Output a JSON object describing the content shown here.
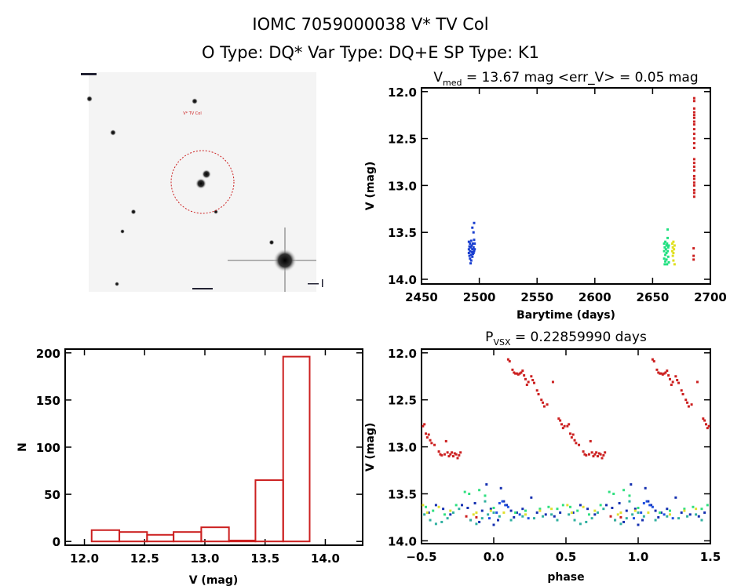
{
  "header": {
    "title": "IOMC 7059000038    V* TV Col",
    "subtitle": "O Type: DQ*  Var Type: DQ+E  SP Type: K1"
  },
  "cutout": {
    "target_label": "V* TV Col",
    "marker_color": "#cc2020"
  },
  "chart_data": [
    {
      "type": "scatter",
      "panel": "light-curve",
      "title_main": "V",
      "title_sub": "med",
      "title_rest": " = 13.67 mag <err_V> = 0.05 mag",
      "xlabel": "Barytime (days)",
      "ylabel": "V (mag)",
      "xlim": [
        2450,
        2700
      ],
      "ylim": [
        14.05,
        11.96
      ],
      "y_inverted": true,
      "xticks": [
        "2450",
        "2500",
        "2550",
        "2600",
        "2650",
        "2700"
      ],
      "yticks": [
        "12.0",
        "12.5",
        "13.0",
        "13.5",
        "14.0"
      ],
      "grid": false,
      "series": [
        {
          "color": "#1a3fd0",
          "points": [
            [
              2491,
              13.6
            ],
            [
              2491,
              13.68
            ],
            [
              2491,
              13.72
            ],
            [
              2491.5,
              13.65
            ],
            [
              2491.5,
              13.75
            ],
            [
              2492,
              13.62
            ],
            [
              2492,
              13.7
            ],
            [
              2492,
              13.78
            ],
            [
              2492.5,
              13.66
            ],
            [
              2492.5,
              13.83
            ],
            [
              2493,
              13.59
            ],
            [
              2493,
              13.74
            ],
            [
              2493,
              13.8
            ],
            [
              2493.5,
              13.64
            ],
            [
              2493.5,
              13.71
            ],
            [
              2494,
              13.45
            ],
            [
              2494,
              13.68
            ],
            [
              2494,
              13.76
            ],
            [
              2494.5,
              13.62
            ],
            [
              2494.5,
              13.73
            ],
            [
              2495,
              13.5
            ],
            [
              2495,
              13.66
            ],
            [
              2495,
              13.72
            ],
            [
              2495.5,
              13.4
            ],
            [
              2495.5,
              13.58
            ],
            [
              2495.5,
              13.7
            ],
            [
              2496,
              13.62
            ],
            [
              2496,
              13.68
            ]
          ]
        },
        {
          "color": "#20e080",
          "points": [
            [
              2660,
              13.62
            ],
            [
              2660,
              13.7
            ],
            [
              2660,
              13.78
            ],
            [
              2660.5,
              13.66
            ],
            [
              2660.5,
              13.84
            ],
            [
              2661,
              13.6
            ],
            [
              2661,
              13.74
            ],
            [
              2661,
              13.81
            ],
            [
              2661.5,
              13.68
            ],
            [
              2662,
              13.64
            ],
            [
              2662,
              13.72
            ],
            [
              2662,
              13.79
            ],
            [
              2662.5,
              13.62
            ],
            [
              2662.5,
              13.84
            ],
            [
              2663,
              13.47
            ],
            [
              2663,
              13.56
            ],
            [
              2663,
              13.7
            ],
            [
              2663.5,
              13.66
            ],
            [
              2663.5,
              13.76
            ],
            [
              2664,
              13.64
            ],
            [
              2664,
              13.82
            ]
          ]
        },
        {
          "color": "#e0e020",
          "points": [
            [
              2667,
              13.62
            ],
            [
              2667,
              13.7
            ],
            [
              2667.5,
              13.66
            ],
            [
              2667.5,
              13.75
            ],
            [
              2668,
              13.6
            ],
            [
              2668,
              13.72
            ],
            [
              2668,
              13.8
            ],
            [
              2668.5,
              13.68
            ],
            [
              2669,
              13.64
            ],
            [
              2669,
              13.84
            ]
          ]
        },
        {
          "color": "#cc2020",
          "points": [
            [
              2686,
              12.07
            ],
            [
              2686,
              12.1
            ],
            [
              2686,
              12.18
            ],
            [
              2686,
              12.22
            ],
            [
              2686,
              12.25
            ],
            [
              2686,
              12.28
            ],
            [
              2686,
              12.32
            ],
            [
              2686,
              12.35
            ],
            [
              2686,
              12.4
            ],
            [
              2686,
              12.45
            ],
            [
              2686,
              12.5
            ],
            [
              2686,
              12.55
            ],
            [
              2686,
              12.6
            ],
            [
              2686,
              12.72
            ],
            [
              2686,
              12.76
            ],
            [
              2686,
              12.8
            ],
            [
              2686,
              12.84
            ],
            [
              2686,
              12.9
            ],
            [
              2686,
              12.93
            ],
            [
              2686,
              12.97
            ],
            [
              2686,
              13.0
            ],
            [
              2686,
              13.05
            ],
            [
              2686,
              13.08
            ],
            [
              2686,
              13.12
            ],
            [
              2685.5,
              13.67
            ],
            [
              2685.5,
              13.75
            ],
            [
              2685.5,
              13.79
            ]
          ]
        }
      ]
    },
    {
      "type": "bar",
      "panel": "histogram",
      "xlabel": "V (mag)",
      "ylabel": "N",
      "xlim": [
        11.84,
        14.31
      ],
      "ylim": [
        -4,
        204
      ],
      "xticks": [
        "12.0",
        "12.5",
        "13.0",
        "13.5",
        "14.0"
      ],
      "yticks": [
        "0",
        "50",
        "100",
        "150",
        "200"
      ],
      "bin_edges": [
        12.06,
        12.29,
        12.52,
        12.74,
        12.97,
        13.2,
        13.42,
        13.65,
        13.87
      ],
      "values": [
        12,
        10,
        7,
        10,
        15,
        1,
        65,
        196
      ],
      "color": "#cc2020",
      "grid": false
    },
    {
      "type": "scatter",
      "panel": "phased-light-curve",
      "title_main": "P",
      "title_sub": "VSX",
      "title_rest": " = 0.22859990 days",
      "xlabel": "phase",
      "ylabel": "V (mag)",
      "xlim": [
        -0.5,
        1.5
      ],
      "ylim": [
        14.03,
        11.96
      ],
      "y_inverted": true,
      "phase_repeated_plus_one": true,
      "xticks": [
        "-0.5",
        "0.0",
        "0.5",
        "1.0",
        "1.5"
      ],
      "yticks": [
        "12.0",
        "12.5",
        "13.0",
        "13.5",
        "14.0"
      ],
      "grid": false,
      "series": [
        {
          "color": "#cc2020",
          "points": [
            [
              0.1,
              12.07
            ],
            [
              0.11,
              12.09
            ],
            [
              0.13,
              12.18
            ],
            [
              0.14,
              12.21
            ],
            [
              0.15,
              12.22
            ],
            [
              0.16,
              12.22
            ],
            [
              0.17,
              12.23
            ],
            [
              0.18,
              12.22
            ],
            [
              0.19,
              12.21
            ],
            [
              0.2,
              12.19
            ],
            [
              0.21,
              12.24
            ],
            [
              0.22,
              12.28
            ],
            [
              0.23,
              12.34
            ],
            [
              0.24,
              12.31
            ],
            [
              0.26,
              12.25
            ],
            [
              0.27,
              12.29
            ],
            [
              0.28,
              12.32
            ],
            [
              0.3,
              12.4
            ],
            [
              0.31,
              12.44
            ],
            [
              0.33,
              12.5
            ],
            [
              0.34,
              12.53
            ],
            [
              0.35,
              12.57
            ],
            [
              0.37,
              12.55
            ],
            [
              0.41,
              12.31
            ],
            [
              0.45,
              12.7
            ],
            [
              0.46,
              12.72
            ],
            [
              0.47,
              12.76
            ],
            [
              0.48,
              12.8
            ],
            [
              0.49,
              12.78
            ],
            [
              -0.49,
              12.78
            ],
            [
              -0.48,
              12.76
            ],
            [
              -0.47,
              12.86
            ],
            [
              -0.46,
              12.9
            ],
            [
              -0.45,
              12.87
            ],
            [
              -0.44,
              12.93
            ],
            [
              -0.43,
              12.96
            ],
            [
              -0.41,
              12.98
            ],
            [
              -0.38,
              13.05
            ],
            [
              -0.37,
              13.08
            ],
            [
              -0.36,
              13.09
            ],
            [
              -0.34,
              13.08
            ],
            [
              -0.33,
              12.94
            ],
            [
              -0.32,
              13.06
            ],
            [
              -0.31,
              13.1
            ],
            [
              -0.3,
              13.08
            ],
            [
              -0.29,
              13.06
            ],
            [
              -0.28,
              13.1
            ],
            [
              -0.27,
              13.07
            ],
            [
              -0.26,
              13.08
            ],
            [
              -0.25,
              13.12
            ],
            [
              -0.24,
              13.09
            ],
            [
              -0.23,
              13.06
            ],
            [
              -0.19,
              13.74
            ],
            [
              -0.16,
              13.78
            ],
            [
              -0.12,
              13.75
            ]
          ]
        },
        {
          "color": "#1530b0",
          "points": [
            [
              -0.45,
              13.7
            ],
            [
              -0.4,
              13.62
            ],
            [
              -0.35,
              13.66
            ],
            [
              -0.3,
              13.72
            ],
            [
              -0.22,
              13.62
            ],
            [
              -0.18,
              13.65
            ],
            [
              -0.13,
              13.6
            ],
            [
              -0.1,
              13.8
            ],
            [
              -0.08,
              13.68
            ],
            [
              -0.05,
              13.4
            ],
            [
              -0.02,
              13.66
            ],
            [
              0.0,
              13.83
            ],
            [
              0.03,
              13.78
            ],
            [
              0.05,
              13.44
            ],
            [
              0.07,
              13.58
            ],
            [
              0.09,
              13.62
            ],
            [
              0.12,
              13.68
            ],
            [
              0.14,
              13.75
            ],
            [
              0.16,
              13.7
            ],
            [
              0.2,
              13.66
            ],
            [
              0.26,
              13.54
            ],
            [
              0.3,
              13.7
            ],
            [
              0.36,
              13.72
            ],
            [
              0.42,
              13.74
            ],
            [
              0.46,
              13.7
            ]
          ]
        },
        {
          "color": "#2050e0",
          "points": [
            [
              -0.03,
              13.76
            ],
            [
              0.02,
              13.7
            ],
            [
              0.04,
              13.6
            ],
            [
              0.06,
              13.58
            ],
            [
              0.08,
              13.62
            ],
            [
              0.1,
              13.64
            ],
            [
              0.18,
              13.72
            ],
            [
              0.24,
              13.76
            ]
          ]
        },
        {
          "color": "#30b0a0",
          "points": [
            [
              -0.48,
              13.72
            ],
            [
              -0.44,
              13.78
            ],
            [
              -0.4,
              13.82
            ],
            [
              -0.36,
              13.8
            ],
            [
              -0.32,
              13.76
            ],
            [
              -0.28,
              13.7
            ],
            [
              -0.24,
              13.66
            ],
            [
              -0.16,
              13.78
            ],
            [
              -0.12,
              13.82
            ],
            [
              -0.08,
              13.76
            ],
            [
              -0.06,
              13.58
            ],
            [
              -0.04,
              13.72
            ],
            [
              0.0,
              13.7
            ],
            [
              0.04,
              13.74
            ],
            [
              0.12,
              13.78
            ],
            [
              0.2,
              13.74
            ],
            [
              0.28,
              13.76
            ],
            [
              0.34,
              13.74
            ],
            [
              0.4,
              13.72
            ],
            [
              0.44,
              13.78
            ]
          ]
        },
        {
          "color": "#30e080",
          "points": [
            [
              -0.47,
              13.64
            ],
            [
              -0.42,
              13.68
            ],
            [
              -0.34,
              13.72
            ],
            [
              -0.26,
              13.62
            ],
            [
              -0.2,
              13.48
            ],
            [
              -0.17,
              13.5
            ],
            [
              -0.1,
              13.46
            ],
            [
              -0.06,
              13.52
            ],
            [
              0.0,
              13.65
            ],
            [
              0.15,
              13.7
            ],
            [
              0.22,
              13.68
            ],
            [
              0.32,
              13.66
            ],
            [
              0.38,
              13.64
            ],
            [
              0.44,
              13.66
            ],
            [
              0.48,
              13.62
            ]
          ]
        },
        {
          "color": "#e0e030",
          "points": [
            [
              -0.49,
              13.62
            ],
            [
              -0.46,
              13.7
            ],
            [
              -0.38,
              13.64
            ],
            [
              -0.3,
              13.68
            ],
            [
              -0.14,
              13.72
            ],
            [
              -0.12,
              13.7
            ],
            [
              -0.02,
              13.68
            ],
            [
              0.07,
              13.7
            ],
            [
              0.22,
              13.72
            ],
            [
              0.32,
              13.68
            ],
            [
              0.4,
              13.66
            ]
          ]
        }
      ]
    }
  ]
}
